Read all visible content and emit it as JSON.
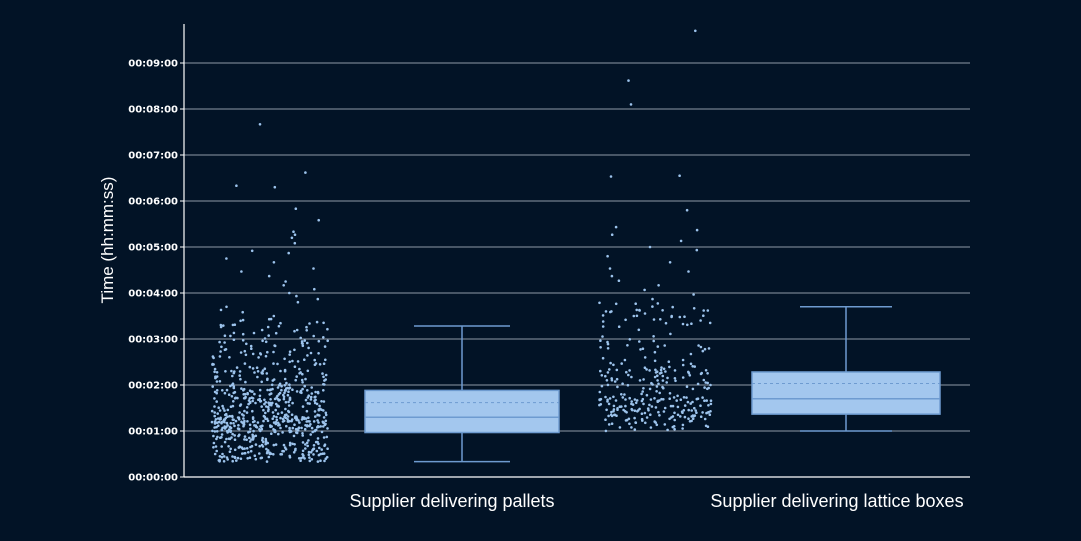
{
  "chart_data": {
    "type": "box",
    "title": "",
    "xlabel": "",
    "ylabel": "Time (hh:mm:ss)",
    "y_unit": "seconds",
    "ylim": [
      0,
      570
    ],
    "yticks": [
      {
        "value": 0,
        "label": "00:00:00"
      },
      {
        "value": 60,
        "label": "00:01:00"
      },
      {
        "value": 120,
        "label": "00:02:00"
      },
      {
        "value": 180,
        "label": "00:03:00"
      },
      {
        "value": 240,
        "label": "00:04:00"
      },
      {
        "value": 300,
        "label": "00:05:00"
      },
      {
        "value": 360,
        "label": "00:06:00"
      },
      {
        "value": 420,
        "label": "00:07:00"
      },
      {
        "value": 480,
        "label": "00:08:00"
      },
      {
        "value": 540,
        "label": "00:09:00"
      }
    ],
    "grid": true,
    "colors": {
      "background": "#021326",
      "points": "#9cc3ec",
      "box_fill": "#a3c7ee",
      "box_line": "#6e9bd0",
      "grid": "#8f99a6",
      "axis": "#ffffff"
    },
    "categories": [
      "Supplier delivering pallets",
      "Supplier delivering lattice boxes"
    ],
    "boxes": [
      {
        "category": "Supplier delivering pallets",
        "min": 20,
        "q1": 58,
        "median": 78,
        "mean": 97,
        "q3": 113,
        "max": 197,
        "outliers": [],
        "points_summary": {
          "n": 700,
          "range": [
            20,
            460
          ]
        }
      },
      {
        "category": "Supplier delivering lattice boxes",
        "min": 60,
        "q1": 82,
        "median": 102,
        "mean": 122,
        "q3": 137,
        "max": 222,
        "outliers": [],
        "points_summary": {
          "n": 300,
          "range": [
            60,
            582
          ]
        }
      }
    ],
    "points": [
      [
        460,
        397,
        380,
        378,
        350,
        335,
        320,
        316,
        312,
        305,
        295,
        292,
        285,
        280,
        272,
        268,
        262,
        255,
        250,
        245,
        240,
        236,
        232,
        228,
        222,
        218,
        215,
        210,
        206,
        202
      ],
      [
        582,
        517,
        486,
        393,
        392,
        348,
        326,
        322,
        316,
        308,
        300,
        296,
        288,
        280,
        272,
        268,
        262,
        256,
        250,
        244,
        238,
        232,
        226,
        220,
        216,
        210,
        205,
        200,
        196,
        192
      ]
    ]
  }
}
